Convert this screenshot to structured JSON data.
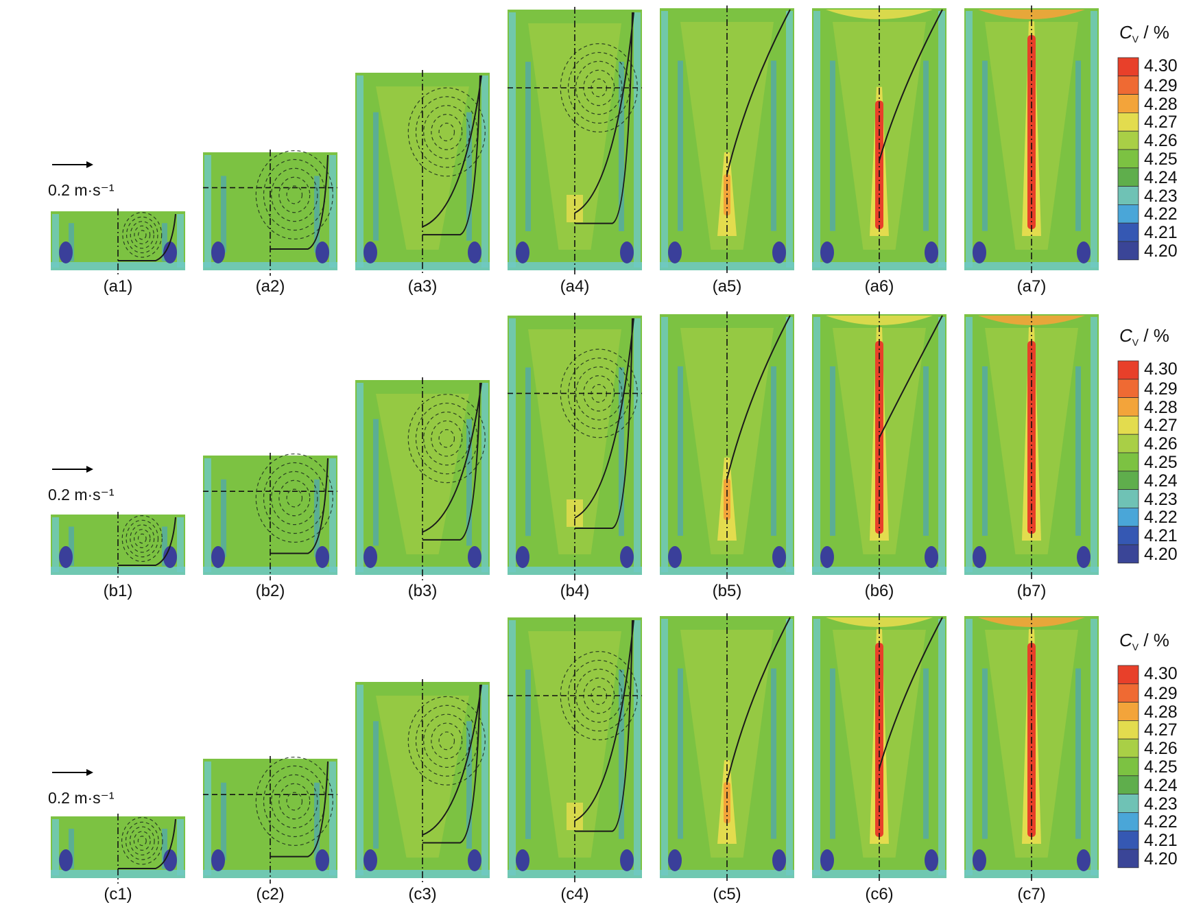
{
  "figure": {
    "rows": [
      {
        "id": "a",
        "panels": [
          "(a1)",
          "(a2)",
          "(a3)",
          "(a4)",
          "(a5)",
          "(a6)",
          "(a7)"
        ],
        "scale_label": "0.2 m·s⁻¹"
      },
      {
        "id": "b",
        "panels": [
          "(b1)",
          "(b2)",
          "(b3)",
          "(b4)",
          "(b5)",
          "(b6)",
          "(b7)"
        ],
        "scale_label": "0.2 m·s⁻¹"
      },
      {
        "id": "c",
        "panels": [
          "(c1)",
          "(c2)",
          "(c3)",
          "(c4)",
          "(c5)",
          "(c6)",
          "(c7)"
        ],
        "scale_label": "0.2 m·s⁻¹"
      }
    ],
    "colorbar": {
      "title_main": "C",
      "title_sub": "V",
      "title_unit": " / %",
      "ticks": [
        "4.30",
        "4.29",
        "4.28",
        "4.27",
        "4.26",
        "4.25",
        "4.24",
        "4.23",
        "4.22",
        "4.21",
        "4.20"
      ],
      "colors": [
        "#e8402a",
        "#ef6a33",
        "#f3a43a",
        "#e3dc4e",
        "#a9cf46",
        "#7cc242",
        "#5fae4c",
        "#6fc2b5",
        "#4aa6d8",
        "#3558b3",
        "#3a4597"
      ]
    },
    "palette": {
      "field": "#7cc242",
      "field_light": "#a9cf46",
      "band_cyan": "#6ec9c4",
      "band_blue": "#3f9fd8",
      "deep_blue": "#3a3f9a",
      "yellow": "#e3dc4e",
      "orange": "#f3a43a",
      "red": "#e8402a"
    }
  }
}
